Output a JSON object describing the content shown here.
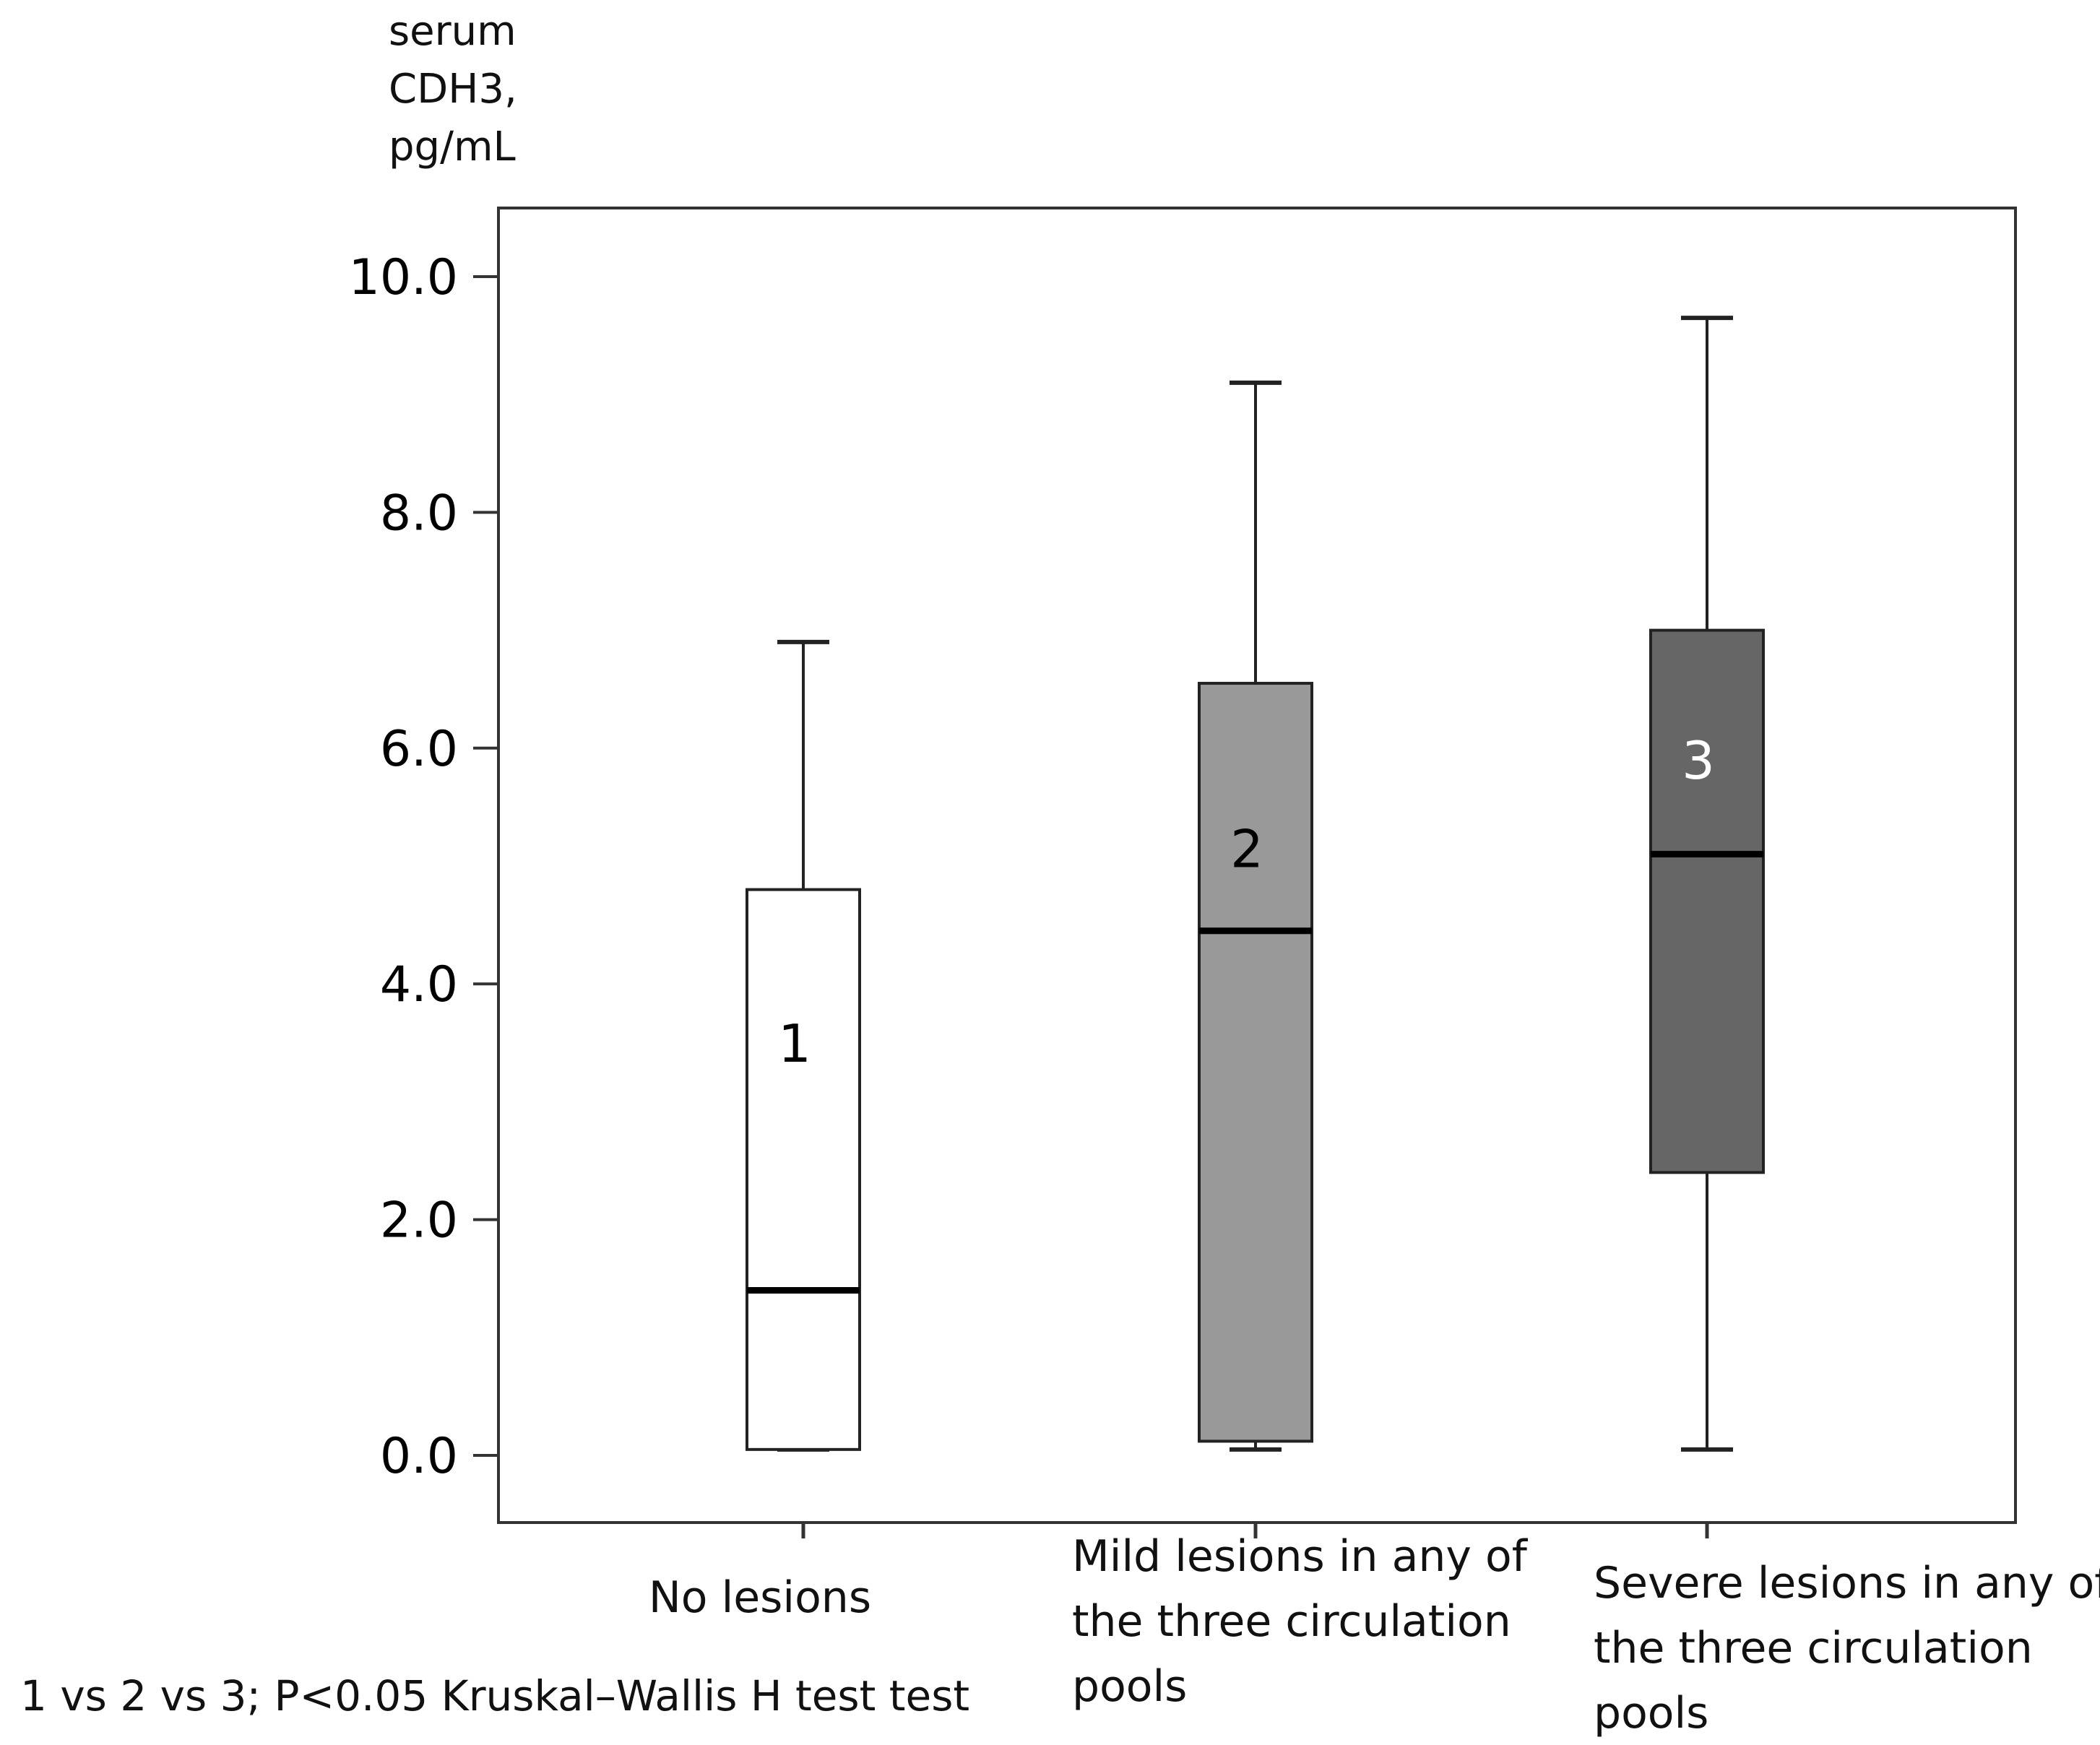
{
  "chart_data": {
    "type": "box",
    "ylabel_lines": [
      "serum",
      "CDH3,",
      "pg/mL"
    ],
    "y_ticks": [
      "10.0",
      "8.0",
      "6.0",
      "4.0",
      "2.0",
      "0.0"
    ],
    "ylim": [
      0,
      10
    ],
    "grid": false,
    "categories": [
      {
        "lines": [
          "No lesions"
        ]
      },
      {
        "lines": [
          "Mild lesions in any of",
          "the three circulation",
          "pools"
        ]
      },
      {
        "lines": [
          "Severe lesions in any of",
          "the three circulation",
          "pools"
        ]
      }
    ],
    "boxes": [
      {
        "label": "1",
        "min": 0.05,
        "q1": 0.05,
        "median": 1.4,
        "q3": 4.8,
        "max": 6.9,
        "label_y": 3.5,
        "fill": "#ffffff",
        "label_color": "#000000"
      },
      {
        "label": "2",
        "min": 0.05,
        "q1": 0.12,
        "median": 4.45,
        "q3": 6.55,
        "max": 9.1,
        "label_y": 5.15,
        "fill": "#999999",
        "label_color": "#000000"
      },
      {
        "label": "3",
        "min": 0.05,
        "q1": 2.4,
        "median": 5.1,
        "q3": 7.0,
        "max": 9.65,
        "label_y": 5.9,
        "fill": "#666666",
        "label_color": "#ffffff"
      }
    ],
    "footnote": "1 vs 2 vs 3; P<0.05  Kruskal–Wallis H test  test"
  }
}
